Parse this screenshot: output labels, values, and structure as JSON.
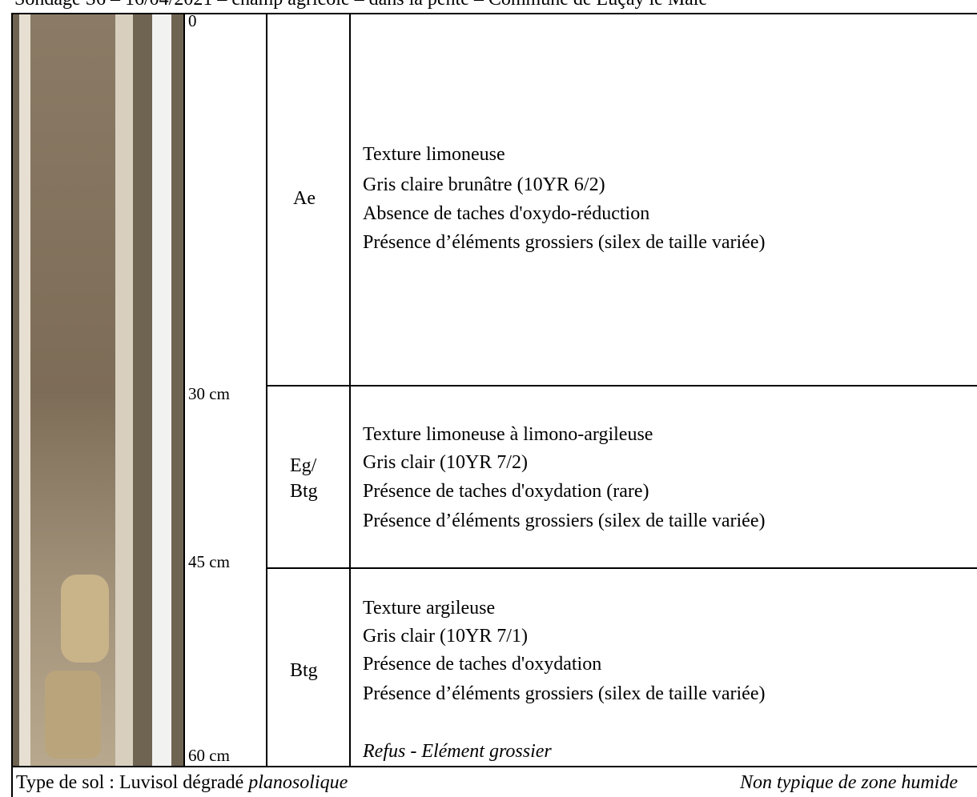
{
  "header": {
    "title": "Sondage S6 – 16/04/2021 – champ agricole – dans la pente – Commune de Luçay le Mâle"
  },
  "profile": {
    "depths": [
      "0",
      "30 cm",
      "45 cm",
      "60 cm"
    ],
    "horizons": [
      {
        "name": [
          "Ae"
        ],
        "description": [
          "Texture limoneuse",
          "Gris claire brunâtre (10YR 6/2)",
          "Absence de taches d'oxydo-réduction",
          "Présence d’éléments grossiers (silex de taille variée)"
        ]
      },
      {
        "name": [
          "Eg/",
          "Btg"
        ],
        "description": [
          "Texture limoneuse à limono-argileuse",
          "Gris clair (10YR 7/2)",
          "Présence de taches d'oxydation (rare)",
          "Présence d’éléments grossiers (silex de taille variée)"
        ]
      },
      {
        "name": [
          "Btg"
        ],
        "description": [
          "Texture argileuse",
          "Gris clair (10YR 7/1)",
          "Présence de taches d'oxydation",
          "Présence d’éléments grossiers (silex de taille variée)"
        ],
        "note": "Refus - Elément grossier"
      }
    ]
  },
  "footer": {
    "soil_type": "Type de sol : Luvisol dégradé ",
    "soil_type_qualifier": "planosolique",
    "conclusion": "Non typique de zone humide"
  }
}
